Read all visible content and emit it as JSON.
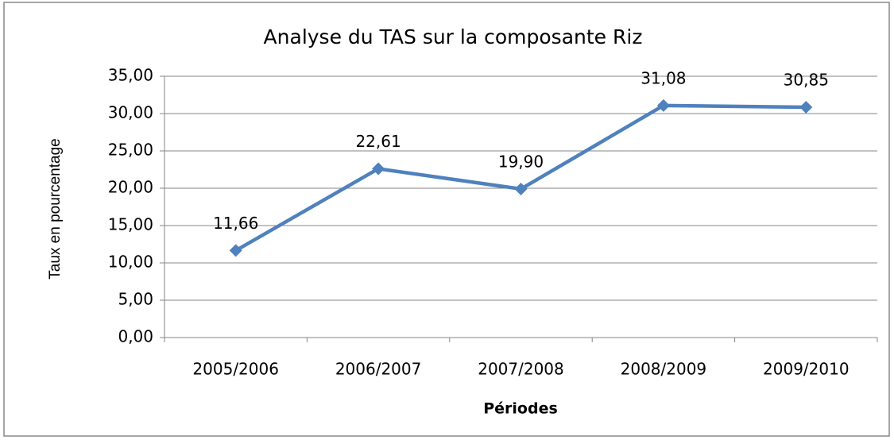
{
  "chart_data": {
    "type": "line",
    "title": "Analyse du TAS sur la composante Riz",
    "x_label": "Périodes",
    "y_label": "Taux en pourcentage",
    "categories": [
      "2005/2006",
      "2006/2007",
      "2007/2008",
      "2008/2009",
      "2009/2010"
    ],
    "values": [
      11.66,
      22.61,
      19.9,
      31.08,
      30.85
    ],
    "value_labels": [
      "11,66",
      "22,61",
      "19,90",
      "31,08",
      "30,85"
    ],
    "color": "#4f81bd",
    "ylim": [
      0,
      35
    ],
    "yticks": [
      {
        "value": 0,
        "label": "0,00"
      },
      {
        "value": 5,
        "label": "5,00"
      },
      {
        "value": 10,
        "label": "10,00"
      },
      {
        "value": 15,
        "label": "15,00"
      },
      {
        "value": 20,
        "label": "20,00"
      },
      {
        "value": 25,
        "label": "25,00"
      },
      {
        "value": 30,
        "label": "30,00"
      },
      {
        "value": 35,
        "label": "35,00"
      }
    ],
    "grid": true
  }
}
